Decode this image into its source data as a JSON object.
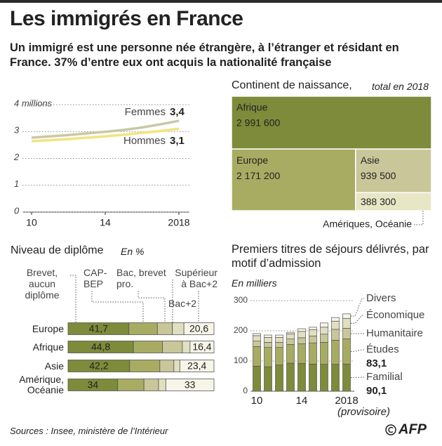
{
  "header": {
    "title": "Les immigrés en France",
    "subtitle": "Un immigré est une personne née étrangère, à l’étranger et résidant en France. 37% d’entre eux ont acquis la nationalité française"
  },
  "chart_data": [
    {
      "type": "line",
      "x": [
        2010,
        2011,
        2012,
        2013,
        2014,
        2015,
        2016,
        2017,
        2018
      ],
      "xlim": [
        2010,
        2018
      ],
      "xticks": [
        {
          "value": 2010,
          "label": "10"
        },
        {
          "value": 2014,
          "label": "14"
        },
        2018
      ],
      "ylim": [
        0,
        4
      ],
      "yticks": [
        0,
        1,
        2,
        3,
        {
          "value": 4,
          "label": "4 millions"
        }
      ],
      "grid": true,
      "series": [
        {
          "name": "Femmes",
          "color": "#c9c8a6",
          "values": [
            2.77,
            2.82,
            2.87,
            2.93,
            2.99,
            3.06,
            3.15,
            3.27,
            3.4
          ],
          "value_labels": [
            null,
            null,
            null,
            null,
            null,
            null,
            null,
            null,
            "3,4"
          ]
        },
        {
          "name": "Hommes",
          "color": "#f3e37e",
          "values": [
            2.64,
            2.68,
            2.72,
            2.77,
            2.82,
            2.88,
            2.95,
            3.02,
            3.1
          ],
          "value_labels": [
            null,
            null,
            null,
            null,
            null,
            null,
            null,
            null,
            "3,1"
          ]
        }
      ]
    },
    {
      "type": "treemap",
      "title": "Continent de naissance,",
      "subtitle": "total en 2018",
      "categories": [
        "Afrique",
        "Europe",
        "Asie",
        "Amériques, Océanie"
      ],
      "values": [
        2991600,
        2171200,
        939500,
        388300
      ],
      "value_labels": [
        "2 991 600",
        "2 171 200",
        "939 500",
        "388 300"
      ],
      "colors": [
        "#7d8b3a",
        "#a8ac62",
        "#c9c79a",
        "#e7e6c5"
      ]
    },
    {
      "type": "stacked-barh",
      "title": "Niveau de diplôme",
      "subtitle": "En %",
      "categories": [
        "Europe",
        "Afrique",
        "Asie",
        "Amérique, Océanie"
      ],
      "xlim": [
        0,
        100
      ],
      "series": [
        {
          "name": "Brevet, aucun diplôme",
          "color": "#7d8b3a",
          "values": [
            41.7,
            44.8,
            42.2,
            34
          ],
          "value_labels": [
            "41,7",
            "44,8",
            "42,2",
            "34"
          ]
        },
        {
          "name": "CAP-BEP",
          "color": "#a8ac62",
          "values": [
            19.5,
            19.9,
            20.7,
            18
          ]
        },
        {
          "name": "Bac, brevet pro.",
          "color": "#c9c79a",
          "values": [
            10.3,
            13.6,
            9.6,
            10
          ]
        },
        {
          "name": "Bac+2",
          "color": "#e0dfc0",
          "values": [
            7.9,
            5.3,
            4.1,
            5
          ]
        },
        {
          "name": "Supérieur à Bac+2",
          "color": "#f6f5e8",
          "values": [
            20.6,
            16.4,
            23.4,
            33
          ],
          "value_labels": [
            "20,6",
            "16,4",
            "23,4",
            "33"
          ]
        }
      ]
    },
    {
      "type": "stacked-bar",
      "title": "Premiers titres de séjours délivrés, par motif d’admission",
      "subtitle": "En milliers",
      "x": [
        2010,
        2011,
        2012,
        2013,
        2014,
        2015,
        2016,
        2017,
        2018
      ],
      "xlim": [
        2010,
        2018
      ],
      "xticks": [
        {
          "value": 2010,
          "label": "10"
        },
        {
          "value": 2014,
          "label": "14"
        },
        2018
      ],
      "annotations": [
        "(provisoire)"
      ],
      "ylim": [
        0,
        300
      ],
      "yticks": [
        0,
        100,
        200,
        300
      ],
      "grid": true,
      "series": [
        {
          "name": "Familial",
          "color": "#7d8b3a",
          "values": [
            83,
            81,
            87,
            93,
            92,
            90,
            89,
            89,
            90.1
          ],
          "value_labels": [
            null,
            null,
            null,
            null,
            null,
            null,
            null,
            null,
            "90,1"
          ]
        },
        {
          "name": "Études",
          "color": "#a8ac62",
          "values": [
            65,
            64,
            58,
            62,
            65,
            70,
            73,
            80,
            83.1
          ],
          "value_labels": [
            null,
            null,
            null,
            null,
            null,
            null,
            null,
            null,
            "83,1"
          ]
        },
        {
          "name": "Humanitaire",
          "color": "#c9c79a",
          "values": [
            18,
            17,
            17,
            18,
            20,
            23,
            27,
            36,
            35
          ]
        },
        {
          "name": "Économique",
          "color": "#e0dfc0",
          "values": [
            18,
            16,
            16,
            17,
            21,
            21,
            23,
            27,
            33
          ]
        },
        {
          "name": "Divers",
          "color": "#f6f5e8",
          "values": [
            7,
            8,
            8,
            5,
            9,
            8,
            14,
            12,
            15
          ]
        }
      ]
    }
  ],
  "footer": {
    "source": "Sources : Insee, ministère de l’Intérieur",
    "logo": "AFP"
  }
}
